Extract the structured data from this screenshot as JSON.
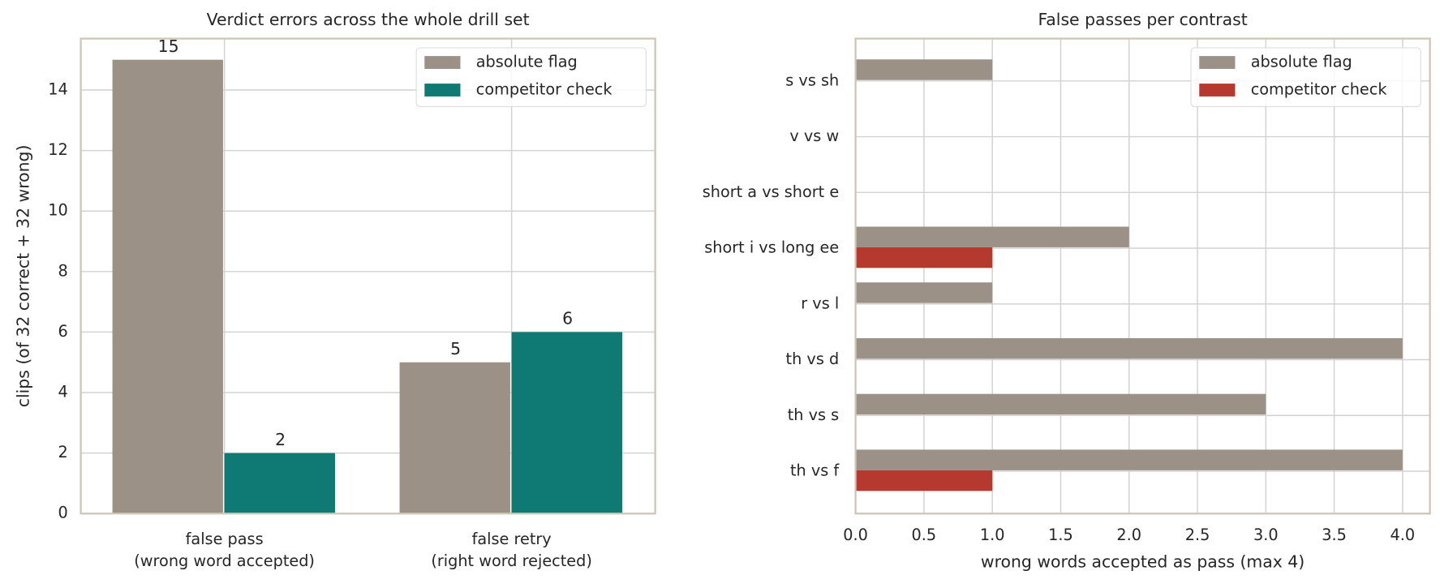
{
  "chart_data": [
    {
      "type": "bar",
      "title": "Verdict errors across the whole drill set",
      "ylabel": "clips (of 32 correct + 32 wrong)",
      "categories": [
        "false pass\n(wrong word accepted)",
        "false retry\n(right word rejected)"
      ],
      "series": [
        {
          "name": "absolute flag",
          "color": "#9b9186",
          "values": [
            15,
            5
          ]
        },
        {
          "name": "competitor check",
          "color": "#0f7a73",
          "values": [
            2,
            6
          ]
        }
      ],
      "ylim": [
        0,
        15.7
      ],
      "yticks": [
        0,
        2,
        4,
        6,
        8,
        10,
        12,
        14
      ],
      "grid": true,
      "legend": "upper right",
      "data_labels": true
    },
    {
      "type": "barh",
      "title": "False passes per contrast",
      "xlabel": "wrong words accepted as pass (max 4)",
      "categories": [
        "s vs sh",
        "v vs w",
        "short a vs short e",
        "short i vs long ee",
        "r vs l",
        "th vs d",
        "th vs s",
        "th vs f"
      ],
      "series": [
        {
          "name": "absolute flag",
          "color": "#9b9186",
          "values": [
            1,
            0,
            0,
            2,
            1,
            4,
            3,
            4
          ]
        },
        {
          "name": "competitor check",
          "color": "#b5392f",
          "values": [
            0,
            0,
            0,
            1,
            0,
            0,
            0,
            1
          ]
        }
      ],
      "xlim": [
        0,
        4.2
      ],
      "xticks": [
        {
          "value": 0,
          "label": "0.0"
        },
        {
          "value": 0.5,
          "label": "0.5"
        },
        {
          "value": 1,
          "label": "1.0"
        },
        {
          "value": 1.5,
          "label": "1.5"
        },
        {
          "value": 2,
          "label": "2.0"
        },
        {
          "value": 2.5,
          "label": "2.5"
        },
        {
          "value": 3,
          "label": "3.0"
        },
        {
          "value": 3.5,
          "label": "3.5"
        },
        {
          "value": 4,
          "label": "4.0"
        }
      ],
      "grid": true,
      "legend": "upper right"
    }
  ]
}
